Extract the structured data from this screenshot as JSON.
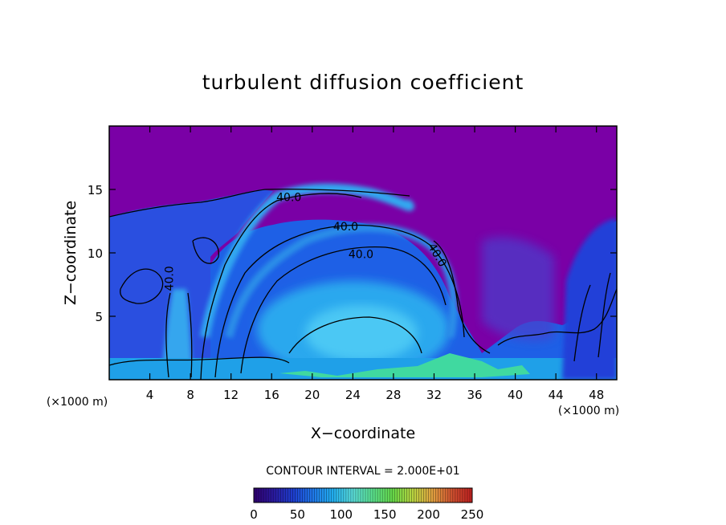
{
  "chart_data": {
    "type": "heatmap",
    "title": "turbulent diffusion coefficient",
    "xlabel": "X−coordinate",
    "ylabel": "Z−coordinate",
    "x_unit": "(×1000 m)",
    "y_unit": "(×1000 m)",
    "xlim": [
      0,
      50
    ],
    "ylim": [
      0,
      20
    ],
    "x_ticks": [
      4,
      8,
      12,
      16,
      20,
      24,
      28,
      32,
      36,
      40,
      44,
      48
    ],
    "y_ticks": [
      5,
      10,
      15
    ],
    "contour_interval_text": "CONTOUR INTERVAL = 2.000E+01",
    "contour_interval": 20,
    "contour_labels": [
      {
        "text": "40.0",
        "x": 17.7,
        "z": 14.4
      },
      {
        "text": "40.0",
        "x": 23.3,
        "z": 12.1
      },
      {
        "text": "40.0",
        "x": 24.8,
        "z": 9.9
      },
      {
        "text": "40.0",
        "x": 32.0,
        "z": 10.0
      },
      {
        "text": "40.0",
        "x": 6.3,
        "z": 8.3
      }
    ],
    "colorbar": {
      "min": 0,
      "max": 250,
      "ticks": [
        0,
        50,
        100,
        150,
        200,
        250
      ],
      "colors": [
        "#300070",
        "#2a1aa0",
        "#1e3fd0",
        "#1f78e8",
        "#22b0f0",
        "#5adcd8",
        "#5ae08c",
        "#66d848",
        "#b8d440",
        "#e0a040",
        "#d05030",
        "#c02020"
      ]
    },
    "background_color": "#7a00a6"
  }
}
